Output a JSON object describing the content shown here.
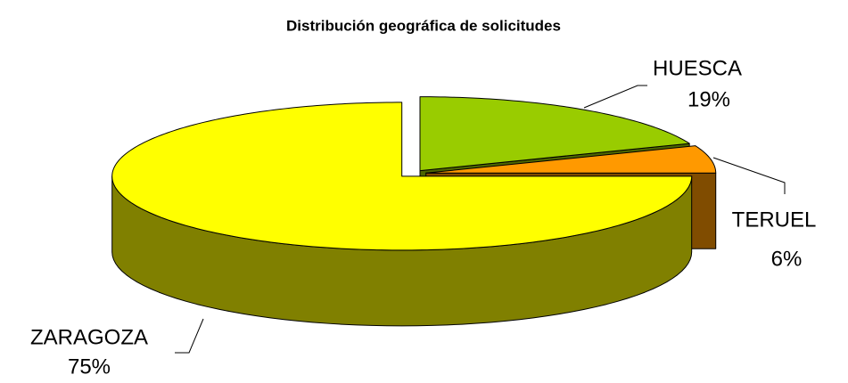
{
  "chart_data": {
    "type": "pie3d",
    "title": "Distribución geográfica de solicitudes",
    "categories": [
      "HUESCA",
      "TERUEL",
      "ZARAGOZA"
    ],
    "values": [
      19,
      6,
      75
    ],
    "value_labels": [
      "19%",
      "6%",
      "75%"
    ],
    "colors": [
      "#99cc00",
      "#ff9900",
      "#ffff00"
    ],
    "side_colors": [
      "#4d6600",
      "#804c00",
      "#808000"
    ]
  }
}
